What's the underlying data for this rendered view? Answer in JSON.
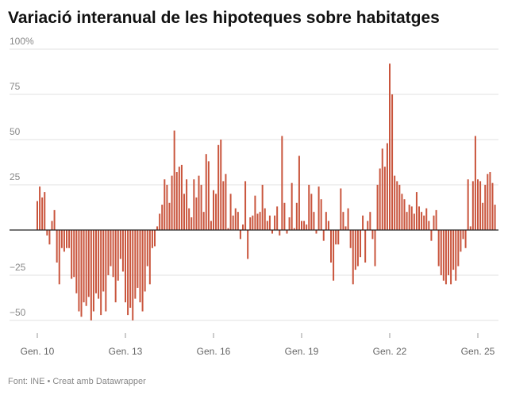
{
  "chart_data": {
    "type": "bar",
    "title": "Variació interanual de les hipoteques sobre habitatges",
    "source": "Font: INE • Creat amb Datawrapper",
    "color": "#c9553d",
    "grid": true,
    "ylim": [
      -53,
      101
    ],
    "yticks": [
      {
        "value": -50,
        "label": "−50"
      },
      {
        "value": -25,
        "label": "−25"
      },
      25,
      50,
      75,
      {
        "value": 100,
        "label": "100%"
      }
    ],
    "categories": [
      "Gen. 10",
      null,
      null,
      null,
      null,
      null,
      null,
      null,
      null,
      null,
      null,
      null,
      null,
      null,
      null,
      null,
      null,
      null,
      null,
      null,
      null,
      null,
      null,
      null,
      null,
      null,
      null,
      null,
      null,
      null,
      null,
      null,
      null,
      null,
      null,
      null,
      "Gen. 13",
      null,
      null,
      null,
      null,
      null,
      null,
      null,
      null,
      null,
      null,
      null,
      null,
      null,
      null,
      null,
      null,
      null,
      null,
      null,
      null,
      null,
      null,
      null,
      null,
      null,
      null,
      null,
      null,
      null,
      null,
      null,
      null,
      null,
      null,
      null,
      "Gen. 16",
      null,
      null,
      null,
      null,
      null,
      null,
      null,
      null,
      null,
      null,
      null,
      null,
      null,
      null,
      null,
      null,
      null,
      null,
      null,
      null,
      null,
      null,
      null,
      null,
      null,
      null,
      null,
      null,
      null,
      null,
      null,
      null,
      null,
      null,
      null,
      "Gen. 19",
      null,
      null,
      null,
      null,
      null,
      null,
      null,
      null,
      null,
      null,
      null,
      null,
      null,
      null,
      null,
      null,
      null,
      null,
      null,
      null,
      null,
      null,
      null,
      null,
      null,
      null,
      null,
      null,
      null,
      null,
      null,
      null,
      null,
      null,
      null,
      "Gen. 22",
      null,
      null,
      null,
      null,
      null,
      null,
      null,
      null,
      null,
      null,
      null,
      null,
      null,
      null,
      null,
      null,
      null,
      null,
      null,
      null,
      null,
      null,
      null,
      null,
      null,
      null,
      null,
      null,
      null,
      null,
      null,
      null,
      null,
      null,
      null,
      "Gen. 25",
      null,
      null,
      null,
      null,
      null,
      null,
      null
    ],
    "values": [
      16,
      24,
      18,
      21,
      -3,
      -8,
      5,
      11,
      -18,
      -30,
      -10,
      -12,
      -10,
      -10,
      -27,
      -26,
      -35,
      -45,
      -48,
      -40,
      -42,
      -37,
      -50,
      -45,
      -35,
      -38,
      -47,
      -34,
      -45,
      -25,
      -20,
      -26,
      -40,
      -28,
      -16,
      -23,
      -40,
      -47,
      -43,
      -50,
      -38,
      -32,
      -40,
      -45,
      -34,
      -20,
      -30,
      -10,
      -9,
      2,
      9,
      14,
      28,
      25,
      15,
      30,
      55,
      32,
      35,
      36,
      20,
      28,
      12,
      7,
      28,
      18,
      30,
      25,
      10,
      42,
      38,
      5,
      22,
      20,
      47,
      50,
      27,
      31,
      1,
      20,
      8,
      12,
      10,
      -5,
      3,
      27,
      -16,
      7,
      8,
      19,
      9,
      10,
      25,
      12,
      5,
      8,
      -2,
      8,
      13,
      -3,
      52,
      15,
      -2,
      7,
      26,
      1,
      15,
      41,
      5,
      5,
      3,
      25,
      20,
      10,
      -2,
      24,
      17,
      -6,
      10,
      5,
      -18,
      -28,
      -8,
      -8,
      23,
      10,
      2,
      12,
      -10,
      -30,
      -22,
      -20,
      -15,
      8,
      -18,
      5,
      10,
      -5,
      -20,
      25,
      34,
      45,
      35,
      48,
      92,
      75,
      30,
      27,
      25,
      20,
      17,
      10,
      14,
      13,
      9,
      21,
      13,
      10,
      8,
      12,
      5,
      -6,
      8,
      11,
      -20,
      -25,
      -28,
      -30,
      -25,
      -30,
      -22,
      -28,
      -20,
      -12,
      -5,
      -10,
      28,
      2,
      27,
      52,
      28,
      27,
      15,
      25,
      31,
      32,
      26,
      14
    ]
  }
}
